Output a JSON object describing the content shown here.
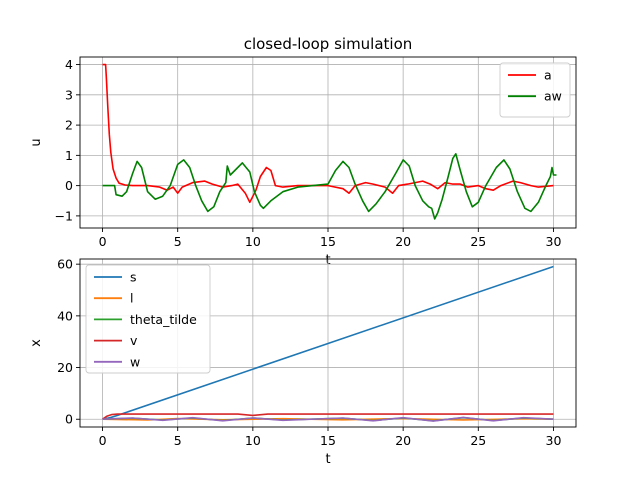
{
  "chart_data": [
    {
      "type": "line",
      "title": "closed-loop simulation",
      "xlabel": "t",
      "ylabel": "u",
      "xlim": [
        -1.5,
        31.5
      ],
      "ylim": [
        -1.4,
        4.25
      ],
      "xticks": [
        0,
        5,
        10,
        15,
        20,
        25,
        30
      ],
      "yticks": [
        -1,
        0,
        1,
        2,
        3,
        4
      ],
      "grid": true,
      "legend": "top-right",
      "series": [
        {
          "name": "a",
          "color": "#ff0000",
          "points": [
            [
              0,
              4
            ],
            [
              0.2,
              4
            ],
            [
              0.25,
              3.6
            ],
            [
              0.35,
              2.6
            ],
            [
              0.45,
              1.7
            ],
            [
              0.55,
              1.1
            ],
            [
              0.7,
              0.55
            ],
            [
              0.9,
              0.25
            ],
            [
              1.1,
              0.08
            ],
            [
              1.5,
              0.02
            ],
            [
              2,
              0
            ],
            [
              3,
              0
            ],
            [
              3.8,
              -0.05
            ],
            [
              4.3,
              -0.15
            ],
            [
              4.7,
              -0.05
            ],
            [
              5,
              -0.25
            ],
            [
              5.3,
              -0.05
            ],
            [
              6,
              0.1
            ],
            [
              6.8,
              0.15
            ],
            [
              7.3,
              0.05
            ],
            [
              8,
              -0.05
            ],
            [
              8.6,
              0
            ],
            [
              9,
              0.05
            ],
            [
              9.5,
              -0.25
            ],
            [
              9.8,
              -0.55
            ],
            [
              10.2,
              -0.15
            ],
            [
              10.5,
              0.3
            ],
            [
              10.9,
              0.6
            ],
            [
              11.2,
              0.5
            ],
            [
              11.5,
              0
            ],
            [
              12,
              -0.05
            ],
            [
              13,
              0
            ],
            [
              15,
              0
            ],
            [
              16,
              -0.1
            ],
            [
              16.4,
              -0.25
            ],
            [
              16.8,
              0
            ],
            [
              17.5,
              0.1
            ],
            [
              18,
              0.05
            ],
            [
              18.8,
              -0.05
            ],
            [
              19.3,
              -0.25
            ],
            [
              19.7,
              0
            ],
            [
              20.3,
              0.05
            ],
            [
              21.3,
              0.15
            ],
            [
              21.8,
              0.05
            ],
            [
              22.3,
              -0.1
            ],
            [
              22.8,
              0.1
            ],
            [
              23.3,
              0.05
            ],
            [
              23.8,
              0.05
            ],
            [
              24.3,
              -0.05
            ],
            [
              25,
              0
            ],
            [
              25.5,
              -0.1
            ],
            [
              26,
              -0.15
            ],
            [
              26.5,
              0
            ],
            [
              27.3,
              0.15
            ],
            [
              27.8,
              0.1
            ],
            [
              28.5,
              0
            ],
            [
              29,
              -0.05
            ],
            [
              30,
              0
            ]
          ]
        },
        {
          "name": "aw",
          "color": "#008000",
          "points": [
            [
              0,
              0
            ],
            [
              0.5,
              0
            ],
            [
              0.8,
              0
            ],
            [
              0.9,
              -0.3
            ],
            [
              1.3,
              -0.35
            ],
            [
              1.6,
              -0.2
            ],
            [
              2,
              0.4
            ],
            [
              2.3,
              0.8
            ],
            [
              2.6,
              0.6
            ],
            [
              3,
              -0.2
            ],
            [
              3.5,
              -0.45
            ],
            [
              4,
              -0.35
            ],
            [
              4.5,
              0
            ],
            [
              5,
              0.7
            ],
            [
              5.4,
              0.85
            ],
            [
              5.8,
              0.6
            ],
            [
              6.2,
              0
            ],
            [
              6.6,
              -0.5
            ],
            [
              7,
              -0.85
            ],
            [
              7.4,
              -0.7
            ],
            [
              7.8,
              -0.2
            ],
            [
              8.2,
              0.1
            ],
            [
              8.3,
              0.65
            ],
            [
              8.5,
              0.35
            ],
            [
              8.8,
              0.5
            ],
            [
              9.3,
              0.75
            ],
            [
              9.8,
              0.45
            ],
            [
              10.1,
              -0.2
            ],
            [
              10.5,
              -0.65
            ],
            [
              10.7,
              -0.75
            ],
            [
              11.2,
              -0.5
            ],
            [
              12,
              -0.2
            ],
            [
              13,
              -0.05
            ],
            [
              14,
              0
            ],
            [
              15,
              0.05
            ],
            [
              15.5,
              0.5
            ],
            [
              16,
              0.8
            ],
            [
              16.4,
              0.6
            ],
            [
              16.8,
              0.05
            ],
            [
              17.3,
              -0.5
            ],
            [
              17.7,
              -0.85
            ],
            [
              18.2,
              -0.6
            ],
            [
              18.8,
              -0.2
            ],
            [
              19.5,
              0.4
            ],
            [
              20,
              0.85
            ],
            [
              20.4,
              0.65
            ],
            [
              20.8,
              0
            ],
            [
              21.3,
              -0.5
            ],
            [
              21.7,
              -0.7
            ],
            [
              21.9,
              -0.75
            ],
            [
              22.1,
              -1.1
            ],
            [
              22.3,
              -0.9
            ],
            [
              22.6,
              -0.45
            ],
            [
              23,
              0.3
            ],
            [
              23.3,
              0.9
            ],
            [
              23.5,
              1.05
            ],
            [
              23.8,
              0.5
            ],
            [
              24.2,
              -0.2
            ],
            [
              24.6,
              -0.7
            ],
            [
              25,
              -0.55
            ],
            [
              25.5,
              0
            ],
            [
              26.2,
              0.6
            ],
            [
              26.7,
              0.85
            ],
            [
              27.1,
              0.55
            ],
            [
              27.6,
              -0.2
            ],
            [
              28.1,
              -0.75
            ],
            [
              28.5,
              -0.85
            ],
            [
              29,
              -0.55
            ],
            [
              29.5,
              0
            ],
            [
              29.8,
              0.3
            ],
            [
              29.9,
              0.6
            ],
            [
              30,
              0.35
            ],
            [
              30.2,
              0.35
            ]
          ]
        }
      ]
    },
    {
      "type": "line",
      "title": "",
      "xlabel": "t",
      "ylabel": "x",
      "xlim": [
        -1.5,
        31.5
      ],
      "ylim": [
        -3,
        62
      ],
      "xticks": [
        0,
        5,
        10,
        15,
        20,
        25,
        30
      ],
      "yticks": [
        0,
        20,
        40,
        60
      ],
      "grid": true,
      "legend": "top-left",
      "series": [
        {
          "name": "s",
          "color": "#1f77b4",
          "points": [
            [
              0,
              0
            ],
            [
              0.5,
              0.6
            ],
            [
              1,
              1.5
            ],
            [
              1.5,
              2.5
            ],
            [
              30,
              59.1
            ]
          ]
        },
        {
          "name": "l",
          "color": "#ff7f0e",
          "points": [
            [
              0,
              0
            ],
            [
              3,
              -0.3
            ],
            [
              5,
              0.3
            ],
            [
              8,
              -0.2
            ],
            [
              12,
              0.2
            ],
            [
              16,
              -0.2
            ],
            [
              20,
              0.3
            ],
            [
              24,
              -0.3
            ],
            [
              28,
              0.2
            ],
            [
              30,
              0
            ]
          ]
        },
        {
          "name": "theta_tilde",
          "color": "#2ca02c",
          "points": [
            [
              0,
              0
            ],
            [
              2,
              0.4
            ],
            [
              4,
              -0.3
            ],
            [
              6,
              0.5
            ],
            [
              8,
              -0.5
            ],
            [
              10,
              0.5
            ],
            [
              12,
              -0.3
            ],
            [
              16,
              0.4
            ],
            [
              18,
              -0.5
            ],
            [
              20,
              0.5
            ],
            [
              22,
              -0.6
            ],
            [
              24,
              0.6
            ],
            [
              26,
              -0.5
            ],
            [
              28,
              0.5
            ],
            [
              30,
              0
            ]
          ]
        },
        {
          "name": "v",
          "color": "#d62728",
          "points": [
            [
              0,
              0
            ],
            [
              0.3,
              1.2
            ],
            [
              0.6,
              1.8
            ],
            [
              1,
              2
            ],
            [
              9,
              2
            ],
            [
              10,
              1.5
            ],
            [
              11,
              2
            ],
            [
              30,
              2
            ]
          ]
        },
        {
          "name": "w",
          "color": "#9467bd",
          "points": [
            [
              0,
              0
            ],
            [
              2,
              0.5
            ],
            [
              4,
              -0.4
            ],
            [
              6,
              0.6
            ],
            [
              8,
              -0.6
            ],
            [
              10,
              0.5
            ],
            [
              12,
              -0.4
            ],
            [
              16,
              0.5
            ],
            [
              18,
              -0.6
            ],
            [
              20,
              0.6
            ],
            [
              22,
              -0.7
            ],
            [
              24,
              0.7
            ],
            [
              26,
              -0.6
            ],
            [
              28,
              0.6
            ],
            [
              30,
              0
            ]
          ]
        }
      ]
    }
  ]
}
